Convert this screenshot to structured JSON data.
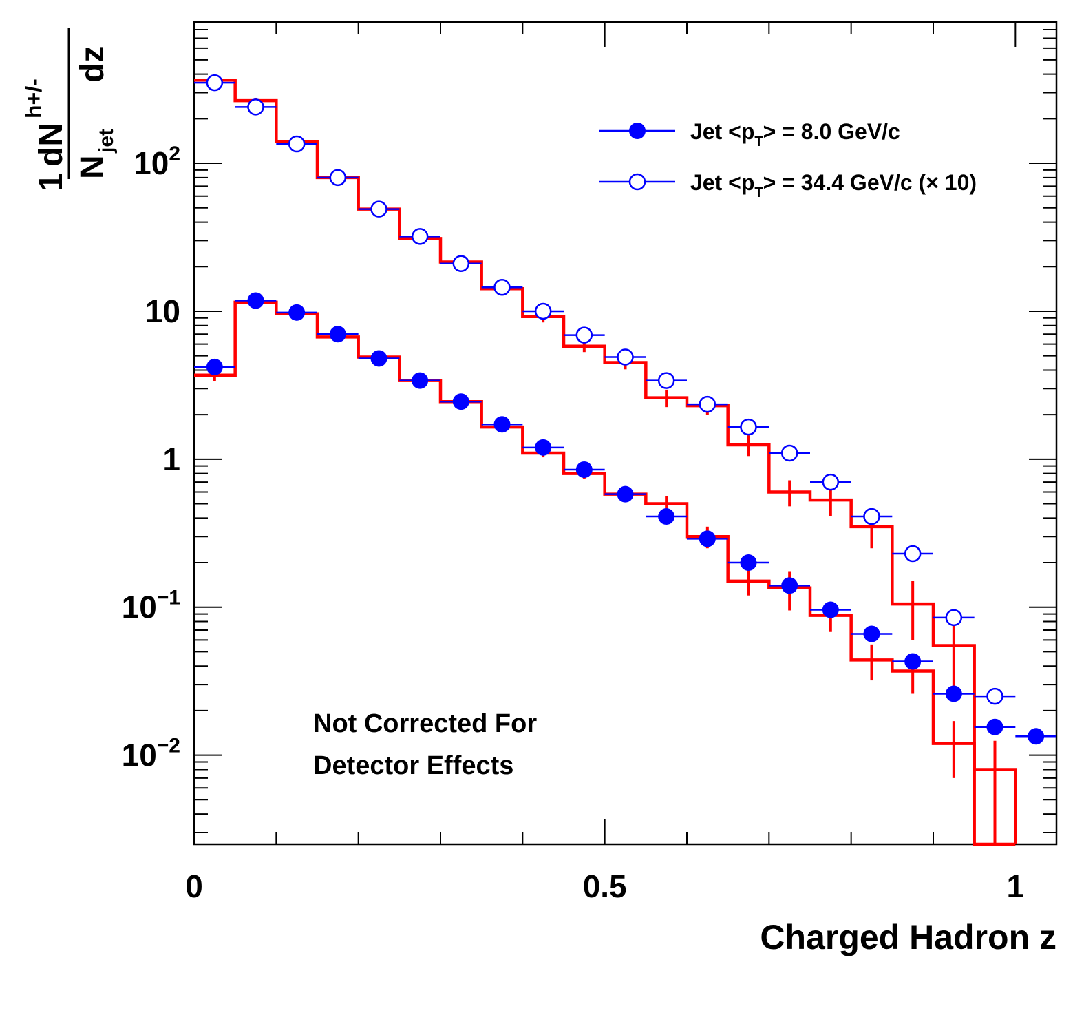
{
  "chart_data": {
    "type": "scatter",
    "xlabel": "Charged Hadron z",
    "ylabel": {
      "numerator_one": "1",
      "numerator_dn": "dN",
      "numerator_sup": "h+/-",
      "denominator_n": "N",
      "denominator_sub": "jet",
      "denominator_dz": "dz"
    },
    "xlim": [
      0,
      1.05
    ],
    "ylim": [
      0.0025,
      900
    ],
    "yscale": "log",
    "x_ticks": [
      {
        "value": 0,
        "label": "0"
      },
      {
        "value": 0.5,
        "label": "0.5"
      },
      {
        "value": 1,
        "label": "1"
      }
    ],
    "y_ticks": [
      {
        "value": 100,
        "base": "10",
        "exp": "2"
      },
      {
        "value": 10,
        "base": "10",
        "exp": ""
      },
      {
        "value": 1,
        "base": "1",
        "exp": ""
      },
      {
        "value": 0.1,
        "base": "10",
        "exp": "−1"
      },
      {
        "value": 0.01,
        "base": "10",
        "exp": "−2"
      }
    ],
    "annotation": [
      "Not Corrected For",
      "Detector Effects"
    ],
    "legend": {
      "placement": "top-right",
      "entries": [
        {
          "marker": "filled-circle",
          "pre": "Jet <p",
          "sub": "T",
          "post": "> = 8.0 GeV/c"
        },
        {
          "marker": "open-circle",
          "pre": "Jet <p",
          "sub": "T",
          "post": "> = 34.4 GeV/c (× 10)"
        }
      ]
    },
    "bin_width": 0.05,
    "series": [
      {
        "name": "Jet <pT> = 8.0 GeV/c",
        "kind": "data",
        "marker": "filled-circle",
        "color": "#0000ff",
        "x": [
          0.025,
          0.075,
          0.125,
          0.175,
          0.225,
          0.275,
          0.325,
          0.375,
          0.425,
          0.475,
          0.525,
          0.575,
          0.625,
          0.675,
          0.725,
          0.775,
          0.825,
          0.875,
          0.925,
          0.975,
          1.025
        ],
        "y": [
          4.2,
          11.8,
          9.8,
          7.0,
          4.8,
          3.4,
          2.45,
          1.72,
          1.2,
          0.85,
          0.58,
          0.41,
          0.29,
          0.2,
          0.14,
          0.096,
          0.066,
          0.043,
          0.026,
          0.0155,
          0.0134
        ]
      },
      {
        "name": "Jet <pT> = 34.4 GeV/c (× 10)",
        "kind": "data",
        "marker": "open-circle",
        "color": "#0000ff",
        "x": [
          0.025,
          0.075,
          0.125,
          0.175,
          0.225,
          0.275,
          0.325,
          0.375,
          0.425,
          0.475,
          0.525,
          0.575,
          0.625,
          0.675,
          0.725,
          0.775,
          0.825,
          0.875,
          0.925,
          0.975
        ],
        "y": [
          350,
          240,
          135,
          80,
          49,
          32,
          21,
          14.5,
          10,
          6.9,
          4.9,
          3.4,
          2.35,
          1.65,
          1.1,
          0.7,
          0.41,
          0.23,
          0.085,
          0.025
        ]
      },
      {
        "kind": "model-histogram",
        "color": "#ff0000",
        "x": [
          0.025,
          0.075,
          0.125,
          0.175,
          0.225,
          0.275,
          0.325,
          0.375,
          0.425,
          0.475,
          0.525,
          0.575,
          0.625,
          0.675,
          0.725,
          0.775,
          0.825,
          0.875,
          0.925,
          0.975
        ],
        "y": [
          3.7,
          11.5,
          9.6,
          6.7,
          4.9,
          3.4,
          2.45,
          1.65,
          1.1,
          0.8,
          0.58,
          0.5,
          0.3,
          0.15,
          0.135,
          0.088,
          0.044,
          0.037,
          0.012,
          0.0025
        ],
        "err": [
          0.35,
          0.5,
          0.4,
          0.3,
          0.2,
          0.12,
          0.1,
          0.08,
          0.07,
          0.06,
          0.05,
          0.06,
          0.05,
          0.03,
          0.04,
          0.02,
          0.012,
          0.011,
          0.005,
          0.0015
        ]
      },
      {
        "kind": "model-histogram",
        "color": "#ff0000",
        "x": [
          0.025,
          0.075,
          0.125,
          0.175,
          0.225,
          0.275,
          0.325,
          0.375,
          0.425,
          0.475,
          0.525,
          0.575,
          0.625,
          0.675,
          0.725,
          0.775,
          0.825,
          0.875,
          0.925,
          0.975
        ],
        "y": [
          365,
          265,
          140,
          80,
          49,
          31,
          21.5,
          14.2,
          9.2,
          5.8,
          4.5,
          2.6,
          2.3,
          1.25,
          0.6,
          0.53,
          0.35,
          0.105,
          0.055,
          0.008
        ],
        "err": [
          15,
          12,
          8,
          5,
          3,
          2,
          1.5,
          1.0,
          0.8,
          0.5,
          0.45,
          0.35,
          0.3,
          0.2,
          0.12,
          0.12,
          0.1,
          0.045,
          0.03,
          0.0045
        ]
      }
    ]
  }
}
